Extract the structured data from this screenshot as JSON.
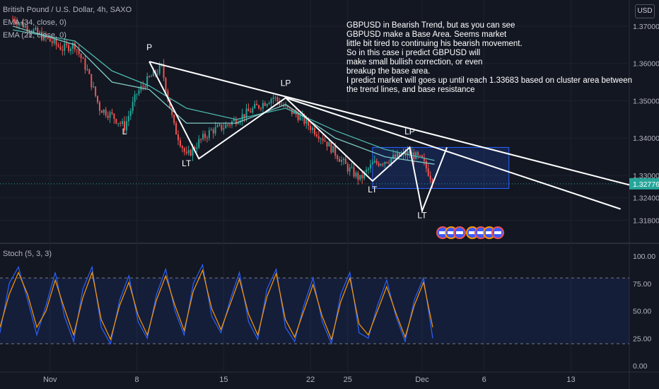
{
  "legend": {
    "title": "British Pound / U.S. Dollar, 4h, SAXO",
    "ema34": "EMA (34, close, 0)",
    "ema21": "EMA (21, close, 0)",
    "stoch": "Stoch (5, 3, 3)"
  },
  "currency_button": "USD",
  "annotation_lines": [
    "GBPUSD in Bearish Trend, but as you can see",
    "GBPUSD make a Base Area. Seems market",
    "little bit tired to continuing his bearish movement.",
    "So in this case i predict GBPUSD will",
    "make small bullish correction, or even",
    "breakup the base area.",
    "I predict market will goes up until reach 1.33683 based on cluster area between",
    "the trend lines, and base resistance"
  ],
  "colors": {
    "background": "#131722",
    "bull": "#26a69a",
    "bear": "#ef5350",
    "ema34": "#4db6ac",
    "ema21": "#80cbc4",
    "stoch_k": "#2962ff",
    "stoch_d": "#ff9800",
    "price_label": "#26a69a",
    "box": "#2962ff"
  },
  "chart_data": {
    "type": "candlestick",
    "title": "British Pound / U.S. Dollar, 4h, SAXO",
    "price_axis": {
      "ticks": [
        "1.37000",
        "1.36000",
        "1.35000",
        "1.34000",
        "1.33000",
        "1.32400",
        "1.31800"
      ],
      "range": [
        1.312,
        1.377
      ],
      "current_price": "1.32776"
    },
    "time_axis": {
      "ticks": [
        "Nov",
        "8",
        "15",
        "22",
        "25",
        "Dec",
        "6",
        "13"
      ]
    },
    "price_path": [
      {
        "date": "2021-10-29",
        "price": 1.372
      },
      {
        "date": "2021-11-01",
        "price": 1.366
      },
      {
        "date": "2021-11-02",
        "price": 1.364
      },
      {
        "date": "2021-11-03",
        "price": 1.365
      },
      {
        "date": "2021-11-04",
        "price": 1.358
      },
      {
        "date": "2021-11-05",
        "price": 1.348
      },
      {
        "date": "2021-11-06",
        "price": 1.346
      },
      {
        "date": "2021-11-07",
        "price": 1.343
      },
      {
        "date": "2021-11-08",
        "price": 1.352
      },
      {
        "date": "2021-11-09",
        "price": 1.356
      },
      {
        "date": "2021-11-10",
        "price": 1.359
      },
      {
        "date": "2021-11-11",
        "price": 1.343
      },
      {
        "date": "2021-11-12",
        "price": 1.335
      },
      {
        "date": "2021-11-13",
        "price": 1.339
      },
      {
        "date": "2021-11-14",
        "price": 1.342
      },
      {
        "date": "2021-11-15",
        "price": 1.343
      },
      {
        "date": "2021-11-16",
        "price": 1.345
      },
      {
        "date": "2021-11-17",
        "price": 1.347
      },
      {
        "date": "2021-11-18",
        "price": 1.349
      },
      {
        "date": "2021-11-19",
        "price": 1.351
      },
      {
        "date": "2021-11-20",
        "price": 1.348
      },
      {
        "date": "2021-11-21",
        "price": 1.346
      },
      {
        "date": "2021-11-22",
        "price": 1.343
      },
      {
        "date": "2021-11-23",
        "price": 1.34
      },
      {
        "date": "2021-11-24",
        "price": 1.336
      },
      {
        "date": "2021-11-25",
        "price": 1.332
      },
      {
        "date": "2021-11-26",
        "price": 1.329
      },
      {
        "date": "2021-11-27",
        "price": 1.333
      },
      {
        "date": "2021-11-28",
        "price": 1.334
      },
      {
        "date": "2021-11-29",
        "price": 1.335
      },
      {
        "date": "2021-11-30",
        "price": 1.336
      },
      {
        "date": "2021-12-01",
        "price": 1.334
      },
      {
        "date": "2021-12-02",
        "price": 1.3278
      }
    ],
    "ema34": [
      {
        "date": "2021-10-29",
        "price": 1.369
      },
      {
        "date": "2021-11-03",
        "price": 1.366
      },
      {
        "date": "2021-11-06",
        "price": 1.358
      },
      {
        "date": "2021-11-09",
        "price": 1.354
      },
      {
        "date": "2021-11-12",
        "price": 1.348
      },
      {
        "date": "2021-11-16",
        "price": 1.345
      },
      {
        "date": "2021-11-20",
        "price": 1.348
      },
      {
        "date": "2021-11-24",
        "price": 1.342
      },
      {
        "date": "2021-11-28",
        "price": 1.337
      },
      {
        "date": "2021-12-02",
        "price": 1.334
      }
    ],
    "ema21": [
      {
        "date": "2021-10-29",
        "price": 1.37
      },
      {
        "date": "2021-11-03",
        "price": 1.365
      },
      {
        "date": "2021-11-06",
        "price": 1.355
      },
      {
        "date": "2021-11-09",
        "price": 1.353
      },
      {
        "date": "2021-11-12",
        "price": 1.344
      },
      {
        "date": "2021-11-16",
        "price": 1.344
      },
      {
        "date": "2021-11-20",
        "price": 1.349
      },
      {
        "date": "2021-11-24",
        "price": 1.34
      },
      {
        "date": "2021-11-28",
        "price": 1.335
      },
      {
        "date": "2021-12-02",
        "price": 1.333
      }
    ],
    "trend_lines": [
      {
        "from": {
          "date": "2021-11-09",
          "price": 1.3605
        },
        "to": {
          "date": "2021-12-18",
          "price": 1.3272
        }
      },
      {
        "from": {
          "date": "2021-11-20",
          "price": 1.3508
        },
        "to": {
          "date": "2021-12-17",
          "price": 1.321
        }
      }
    ],
    "swing_path": [
      {
        "date": "2021-11-09",
        "price": 1.3605
      },
      {
        "date": "2021-11-13",
        "price": 1.3345
      },
      {
        "date": "2021-11-20",
        "price": 1.3508
      },
      {
        "date": "2021-11-27",
        "price": 1.3285
      },
      {
        "date": "2021-11-30",
        "price": 1.3375
      },
      {
        "date": "2021-12-01",
        "price": 1.3205
      },
      {
        "date": "2021-12-03",
        "price": 1.3375
      }
    ],
    "base_box": {
      "from": "2021-11-27",
      "to": "2021-12-08",
      "top": 1.3375,
      "bottom": 1.3265
    },
    "labels": [
      {
        "text": "P",
        "date": "2021-11-09",
        "price": 1.3635
      },
      {
        "text": "L",
        "date": "2021-11-07",
        "price": 1.341
      },
      {
        "text": "LT",
        "date": "2021-11-12",
        "price": 1.3325
      },
      {
        "text": "LP",
        "date": "2021-11-20",
        "price": 1.354
      },
      {
        "text": "LP",
        "date": "2021-11-30",
        "price": 1.341
      },
      {
        "text": "LT",
        "date": "2021-11-27",
        "price": 1.3255
      },
      {
        "text": "LT",
        "date": "2021-12-01",
        "price": 1.3185
      }
    ],
    "stochastic": {
      "ticks": [
        "100.00",
        "75.00",
        "50.00",
        "25.00",
        "0.00"
      ],
      "range": [
        0,
        100
      ],
      "overbought": 80,
      "oversold": 20,
      "k": [
        30,
        75,
        90,
        60,
        28,
        55,
        85,
        45,
        22,
        70,
        90,
        35,
        20,
        60,
        82,
        40,
        25,
        65,
        88,
        50,
        28,
        75,
        92,
        45,
        30,
        60,
        85,
        40,
        24,
        70,
        88,
        35,
        22,
        55,
        80,
        40,
        20,
        65,
        85,
        30,
        25,
        55,
        78,
        45,
        22,
        60,
        80,
        25
      ],
      "d": [
        35,
        65,
        85,
        65,
        35,
        50,
        78,
        52,
        28,
        62,
        85,
        42,
        24,
        55,
        76,
        46,
        28,
        60,
        82,
        55,
        32,
        68,
        87,
        52,
        33,
        56,
        79,
        47,
        28,
        63,
        84,
        42,
        26,
        50,
        74,
        45,
        24,
        58,
        80,
        38,
        28,
        50,
        72,
        48,
        26,
        55,
        76,
        35
      ]
    }
  }
}
